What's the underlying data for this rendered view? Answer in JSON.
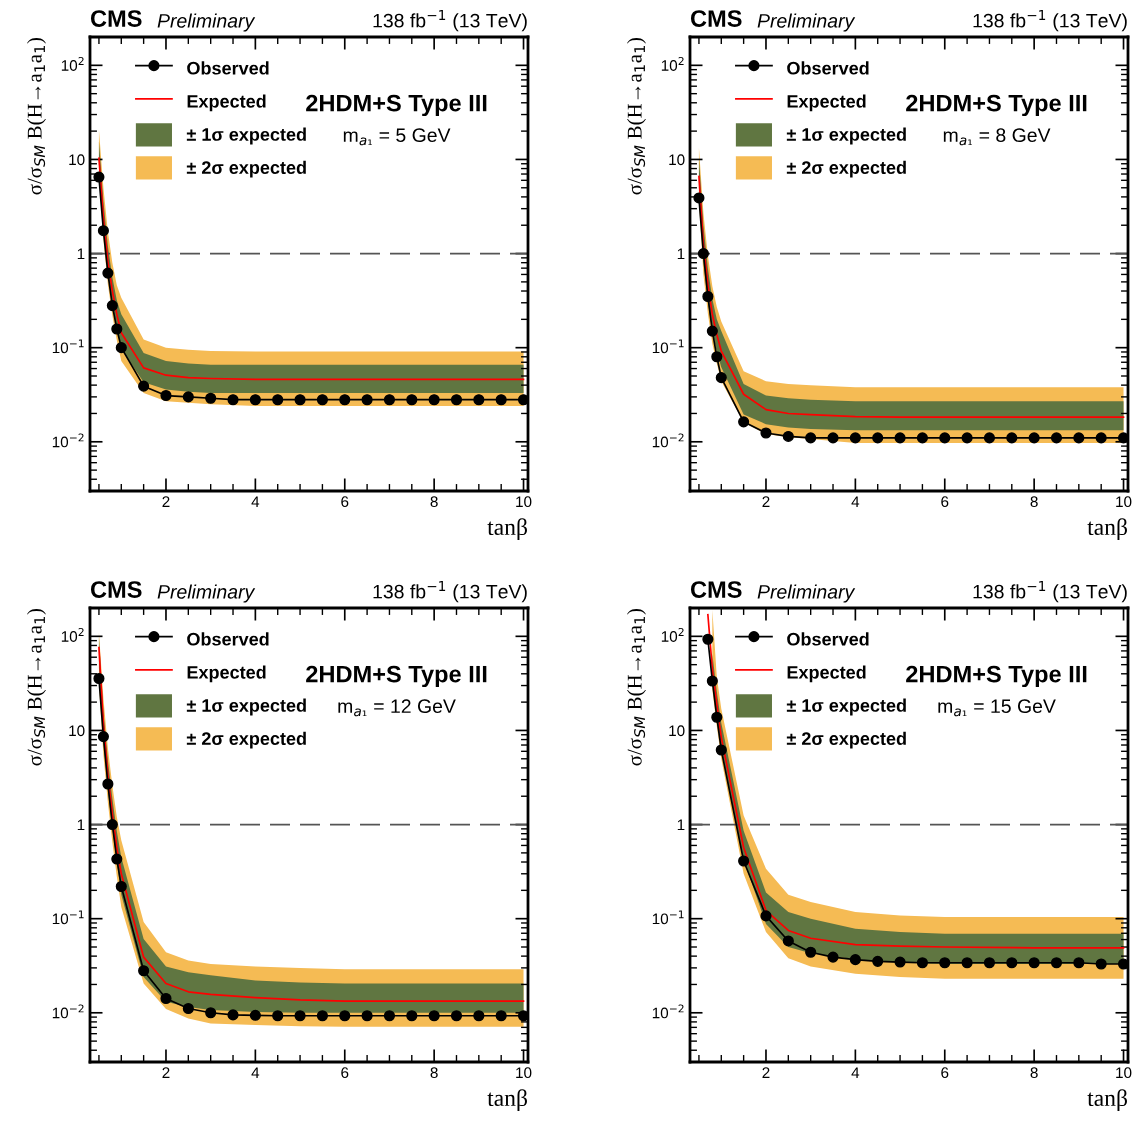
{
  "chart_data": [
    {
      "type": "line",
      "title": "CMS",
      "subtitle": "Preliminary",
      "annotations": [
        "138 fb$^{−1}$ (13 TeV)",
        "2HDM+S Type III",
        "m$_{a₁}$ = 5 GeV"
      ],
      "xlabel": "tanβ",
      "ylabel": "σ/σ$_{SM}$ B(H→a$_{1}$a$_{1}$)",
      "xlim": [
        0.3,
        10.1
      ],
      "ylim": [
        0.003,
        200
      ],
      "xticks": [
        2,
        4,
        6,
        8,
        10
      ],
      "yticks": [
        {
          "value": 0.01,
          "label": "10$^{−2}$"
        },
        {
          "value": 0.1,
          "label": "10$^{−1}$"
        },
        1,
        10,
        {
          "value": 100,
          "label": "10$^{2}$"
        }
      ],
      "log": "y",
      "legend": "top left",
      "ref_lines": [
        {
          "axis": "y",
          "value": 1,
          "color": "#555555",
          "line_style": "dashed"
        }
      ],
      "series": [
        {
          "name": "± 2σ expected",
          "type": "line",
          "color": "#f5bb54",
          "x": [
            0.5,
            0.6,
            0.7,
            0.8,
            0.9,
            1.0,
            1.5,
            2,
            2.5,
            3,
            4,
            5,
            6,
            8,
            10
          ],
          "values": [
            null,
            null,
            null,
            null,
            null,
            null,
            null,
            null,
            null,
            null,
            null,
            null,
            null,
            null,
            null
          ],
          "lower": [
            6.9,
            1.4,
            0.47,
            0.22,
            0.12,
            0.072,
            0.033,
            0.027,
            0.026,
            0.025,
            0.024,
            0.024,
            0.024,
            0.024,
            0.024
          ],
          "upper": [
            20.6,
            5,
            1.7,
            0.8,
            0.46,
            0.34,
            0.122,
            0.1,
            0.095,
            0.092,
            0.091,
            0.091,
            0.091,
            0.091,
            0.091
          ]
        },
        {
          "name": "± 1σ expected",
          "type": "line",
          "color": "#607641",
          "x": [
            0.5,
            0.6,
            0.7,
            0.8,
            0.9,
            1.0,
            1.5,
            2,
            2.5,
            3,
            4,
            5,
            6,
            8,
            10
          ],
          "values": [
            null,
            null,
            null,
            null,
            null,
            null,
            null,
            null,
            null,
            null,
            null,
            null,
            null,
            null,
            null
          ],
          "lower": [
            8.8,
            1.8,
            0.6,
            0.29,
            0.16,
            0.096,
            0.043,
            0.036,
            0.034,
            0.033,
            0.033,
            0.033,
            0.033,
            0.033,
            0.033
          ],
          "upper": [
            15.5,
            3.6,
            1.2,
            0.56,
            0.32,
            0.226,
            0.088,
            0.072,
            0.068,
            0.066,
            0.066,
            0.066,
            0.066,
            0.066,
            0.066
          ]
        },
        {
          "name": "Expected",
          "type": "line",
          "color": "#ff0000",
          "marker": "none",
          "x": [
            0.5,
            0.6,
            0.7,
            0.8,
            0.9,
            1.0,
            1.5,
            2,
            2.5,
            3,
            4,
            5,
            6,
            8,
            10
          ],
          "values": [
            10.3,
            2.4,
            0.83,
            0.4,
            0.226,
            0.144,
            0.061,
            0.051,
            0.048,
            0.047,
            0.046,
            0.046,
            0.046,
            0.046,
            0.046
          ]
        },
        {
          "name": "Observed",
          "type": "line",
          "color": "#000000",
          "marker": "circle",
          "x": [
            0.5,
            0.6,
            0.7,
            0.8,
            0.9,
            1.0,
            1.5,
            2,
            2.5,
            3,
            3.5,
            4,
            4.5,
            5,
            5.5,
            6,
            6.5,
            7,
            7.5,
            8,
            8.5,
            9,
            9.5,
            10
          ],
          "values": [
            6.5,
            1.75,
            0.62,
            0.28,
            0.158,
            0.1,
            0.039,
            0.031,
            0.03,
            0.029,
            0.028,
            0.028,
            0.028,
            0.028,
            0.028,
            0.028,
            0.028,
            0.028,
            0.028,
            0.028,
            0.028,
            0.028,
            0.028,
            0.028
          ]
        }
      ]
    },
    {
      "type": "line",
      "title": "CMS",
      "subtitle": "Preliminary",
      "annotations": [
        "138 fb$^{−1}$ (13 TeV)",
        "2HDM+S Type III",
        "m$_{a₁}$ = 8 GeV"
      ],
      "xlabel": "tanβ",
      "ylabel": "σ/σ$_{SM}$ B(H→a$_{1}$a$_{1}$)",
      "xlim": [
        0.3,
        10.1
      ],
      "ylim": [
        0.003,
        200
      ],
      "xticks": [
        2,
        4,
        6,
        8,
        10
      ],
      "yticks": [
        {
          "value": 0.01,
          "label": "10$^{−2}$"
        },
        {
          "value": 0.1,
          "label": "10$^{−1}$"
        },
        1,
        10,
        {
          "value": 100,
          "label": "10$^{2}$"
        }
      ],
      "log": "y",
      "legend": "top left",
      "ref_lines": [
        {
          "axis": "y",
          "value": 1,
          "color": "#555555",
          "line_style": "dashed"
        }
      ],
      "series": [
        {
          "name": "± 2σ expected",
          "type": "line",
          "color": "#f5bb54",
          "x": [
            0.5,
            0.6,
            0.7,
            0.8,
            0.9,
            1.0,
            1.5,
            2,
            2.5,
            3,
            4,
            5,
            6,
            8,
            10
          ],
          "values": [
            null,
            null,
            null,
            null,
            null,
            null,
            null,
            null,
            null,
            null,
            null,
            null,
            null,
            null,
            null
          ],
          "lower": [
            3.6,
            0.6,
            0.23,
            0.11,
            0.068,
            0.044,
            0.016,
            0.0121,
            0.0112,
            0.0107,
            0.0097,
            0.0097,
            0.0097,
            0.0097,
            0.0097
          ],
          "upper": [
            13.2,
            2.7,
            0.95,
            0.45,
            0.27,
            0.19,
            0.056,
            0.044,
            0.041,
            0.04,
            0.038,
            0.038,
            0.038,
            0.038,
            0.038
          ]
        },
        {
          "name": "± 1σ expected",
          "type": "line",
          "color": "#607641",
          "x": [
            0.5,
            0.6,
            0.7,
            0.8,
            0.9,
            1.0,
            1.5,
            2,
            2.5,
            3,
            4,
            5,
            6,
            8,
            10
          ],
          "values": [
            null,
            null,
            null,
            null,
            null,
            null,
            null,
            null,
            null,
            null,
            null,
            null,
            null,
            null,
            null
          ],
          "lower": [
            4.6,
            0.8,
            0.3,
            0.15,
            0.09,
            0.062,
            0.0195,
            0.0154,
            0.0142,
            0.0137,
            0.0133,
            0.0133,
            0.0133,
            0.0133,
            0.0133
          ],
          "upper": [
            10.3,
            2,
            0.7,
            0.33,
            0.2,
            0.15,
            0.041,
            0.031,
            0.029,
            0.028,
            0.027,
            0.027,
            0.027,
            0.027,
            0.027
          ]
        },
        {
          "name": "Expected",
          "type": "line",
          "color": "#ff0000",
          "marker": "none",
          "x": [
            0.5,
            0.6,
            0.7,
            0.8,
            0.9,
            1.0,
            1.5,
            2,
            2.5,
            3,
            4,
            5,
            6,
            8,
            10
          ],
          "values": [
            6.6,
            1.25,
            0.47,
            0.225,
            0.138,
            0.092,
            0.032,
            0.022,
            0.02,
            0.0194,
            0.0185,
            0.0183,
            0.0183,
            0.0183,
            0.0183
          ]
        },
        {
          "name": "Observed",
          "type": "line",
          "color": "#000000",
          "marker": "circle",
          "x": [
            0.5,
            0.6,
            0.7,
            0.8,
            0.9,
            1.0,
            1.5,
            2,
            2.5,
            3,
            3.5,
            4,
            4.5,
            5,
            5.5,
            6,
            6.5,
            7,
            7.5,
            8,
            8.5,
            9,
            9.5,
            10
          ],
          "values": [
            3.9,
            1.0,
            0.35,
            0.15,
            0.08,
            0.048,
            0.0163,
            0.0124,
            0.0114,
            0.011,
            0.011,
            0.011,
            0.011,
            0.011,
            0.011,
            0.011,
            0.011,
            0.011,
            0.011,
            0.011,
            0.011,
            0.011,
            0.011,
            0.011
          ]
        }
      ]
    },
    {
      "type": "line",
      "title": "CMS",
      "subtitle": "Preliminary",
      "annotations": [
        "138 fb$^{−1}$ (13 TeV)",
        "2HDM+S Type III",
        "m$_{a₁}$ = 12 GeV"
      ],
      "xlabel": "tanβ",
      "ylabel": "σ/σ$_{SM}$ B(H→a$_{1}$a$_{1}$)",
      "xlim": [
        0.3,
        10.1
      ],
      "ylim": [
        0.003,
        200
      ],
      "xticks": [
        2,
        4,
        6,
        8,
        10
      ],
      "yticks": [
        {
          "value": 0.01,
          "label": "10$^{−2}$"
        },
        {
          "value": 0.1,
          "label": "10$^{−1}$"
        },
        1,
        10,
        {
          "value": 100,
          "label": "10$^{2}$"
        }
      ],
      "log": "y",
      "legend": "top left",
      "ref_lines": [
        {
          "axis": "y",
          "value": 1,
          "color": "#555555",
          "line_style": "dashed"
        }
      ],
      "series": [
        {
          "name": "± 2σ expected",
          "type": "line",
          "color": "#f5bb54",
          "x": [
            0.5,
            0.6,
            0.7,
            0.8,
            0.9,
            1.0,
            1.5,
            2,
            2.5,
            3,
            4,
            5,
            6,
            8,
            10
          ],
          "values": [
            null,
            null,
            null,
            null,
            null,
            null,
            null,
            null,
            null,
            null,
            null,
            null,
            null,
            null,
            null
          ],
          "lower": [
            31,
            5.5,
            1.7,
            0.65,
            0.28,
            0.133,
            0.0205,
            0.011,
            0.0087,
            0.0077,
            0.0074,
            0.0072,
            0.0071,
            0.0071,
            0.0071
          ],
          "upper": [
            109,
            22,
            6.5,
            2.6,
            1.2,
            0.68,
            0.092,
            0.044,
            0.036,
            0.033,
            0.031,
            0.03,
            0.029,
            0.029,
            0.029
          ]
        },
        {
          "name": "± 1σ expected",
          "type": "line",
          "color": "#607641",
          "x": [
            0.5,
            0.6,
            0.7,
            0.8,
            0.9,
            1.0,
            1.5,
            2,
            2.5,
            3,
            4,
            5,
            6,
            8,
            10
          ],
          "values": [
            null,
            null,
            null,
            null,
            null,
            null,
            null,
            null,
            null,
            null,
            null,
            null,
            null,
            null,
            null
          ],
          "lower": [
            46,
            7.5,
            2.3,
            0.9,
            0.4,
            0.18,
            0.024,
            0.0131,
            0.0115,
            0.0107,
            0.0102,
            0.01,
            0.01,
            0.01,
            0.01
          ],
          "upper": [
            97,
            16,
            4.8,
            1.9,
            0.85,
            0.45,
            0.061,
            0.031,
            0.027,
            0.025,
            0.022,
            0.021,
            0.0205,
            0.0205,
            0.0205
          ]
        },
        {
          "name": "Expected",
          "type": "line",
          "color": "#ff0000",
          "marker": "none",
          "x": [
            0.5,
            0.6,
            0.7,
            0.8,
            0.9,
            1.0,
            1.5,
            2,
            2.5,
            3,
            4,
            5,
            6,
            8,
            10
          ],
          "values": [
            76,
            11.7,
            3.4,
            1.3,
            0.57,
            0.3,
            0.039,
            0.0205,
            0.0167,
            0.0157,
            0.0145,
            0.0137,
            0.0133,
            0.0133,
            0.0133
          ]
        },
        {
          "name": "Observed",
          "type": "line",
          "color": "#000000",
          "marker": "circle",
          "x": [
            0.5,
            0.6,
            0.7,
            0.8,
            0.9,
            1.0,
            1.5,
            2,
            2.5,
            3,
            3.5,
            4,
            4.5,
            5,
            5.5,
            6,
            6.5,
            7,
            7.5,
            8,
            8.5,
            9,
            9.5,
            10
          ],
          "values": [
            35.6,
            8.6,
            2.7,
            1.0,
            0.43,
            0.22,
            0.028,
            0.0142,
            0.0111,
            0.01,
            0.0095,
            0.0094,
            0.0093,
            0.0093,
            0.0093,
            0.0093,
            0.0093,
            0.0093,
            0.0093,
            0.0093,
            0.0093,
            0.0093,
            0.0093,
            0.0093
          ]
        }
      ]
    },
    {
      "type": "line",
      "title": "CMS",
      "subtitle": "Preliminary",
      "annotations": [
        "138 fb$^{−1}$ (13 TeV)",
        "2HDM+S Type III",
        "m$_{a₁}$ = 15 GeV"
      ],
      "xlabel": "tanβ",
      "ylabel": "σ/σ$_{SM}$ B(H→a$_{1}$a$_{1}$)",
      "xlim": [
        0.3,
        10.1
      ],
      "ylim": [
        0.003,
        200
      ],
      "xticks": [
        2,
        4,
        6,
        8,
        10
      ],
      "yticks": [
        {
          "value": 0.01,
          "label": "10$^{−2}$"
        },
        {
          "value": 0.1,
          "label": "10$^{−1}$"
        },
        1,
        10,
        {
          "value": 100,
          "label": "10$^{2}$"
        }
      ],
      "log": "y",
      "legend": "top left",
      "ref_lines": [
        {
          "axis": "y",
          "value": 1,
          "color": "#555555",
          "line_style": "dashed"
        }
      ],
      "series": [
        {
          "name": "± 2σ expected",
          "type": "line",
          "color": "#f5bb54",
          "x": [
            0.8,
            0.9,
            1.0,
            1.5,
            2,
            2.5,
            3,
            4,
            5,
            6,
            8,
            10
          ],
          "values": [
            null,
            null,
            null,
            null,
            null,
            null,
            null,
            null,
            null,
            null,
            null,
            null
          ],
          "lower": [
            27,
            11,
            5,
            0.3,
            0.072,
            0.038,
            0.031,
            0.026,
            0.024,
            0.023,
            0.023,
            0.023
          ],
          "upper": [
            190,
            37,
            17,
            1.25,
            0.34,
            0.18,
            0.15,
            0.118,
            0.108,
            0.104,
            0.104,
            0.104
          ]
        },
        {
          "name": "± 1σ expected",
          "type": "line",
          "color": "#607641",
          "x": [
            0.8,
            0.9,
            1.0,
            1.5,
            2,
            2.5,
            3,
            4,
            5,
            6,
            8,
            10
          ],
          "values": [
            null,
            null,
            null,
            null,
            null,
            null,
            null,
            null,
            null,
            null,
            null,
            null
          ],
          "lower": [
            33,
            14,
            6.3,
            0.42,
            0.088,
            0.05,
            0.043,
            0.037,
            0.034,
            0.033,
            0.033,
            0.033
          ],
          "upper": [
            65,
            26,
            12,
            0.86,
            0.19,
            0.118,
            0.1,
            0.078,
            0.072,
            0.069,
            0.069,
            0.069
          ]
        },
        {
          "name": "Expected",
          "type": "line",
          "color": "#ff0000",
          "marker": "none",
          "x": [
            0.7,
            0.8,
            0.9,
            1.0,
            1.5,
            2,
            2.5,
            3,
            4,
            5,
            6,
            8,
            10
          ],
          "values": [
            170,
            45,
            19,
            8.4,
            0.57,
            0.122,
            0.075,
            0.062,
            0.053,
            0.051,
            0.05,
            0.049,
            0.049
          ]
        },
        {
          "name": "Observed",
          "type": "line",
          "color": "#000000",
          "marker": "circle",
          "x": [
            0.7,
            0.8,
            0.9,
            1.0,
            1.5,
            2,
            2.5,
            3,
            3.5,
            4,
            4.5,
            5,
            5.5,
            6,
            6.5,
            7,
            7.5,
            8,
            8.5,
            9,
            9.5,
            10
          ],
          "values": [
            93,
            33.5,
            13.8,
            6.2,
            0.41,
            0.107,
            0.058,
            0.044,
            0.039,
            0.0367,
            0.0352,
            0.0346,
            0.034,
            0.034,
            0.034,
            0.034,
            0.034,
            0.034,
            0.034,
            0.034,
            0.033,
            0.033
          ]
        }
      ]
    }
  ]
}
